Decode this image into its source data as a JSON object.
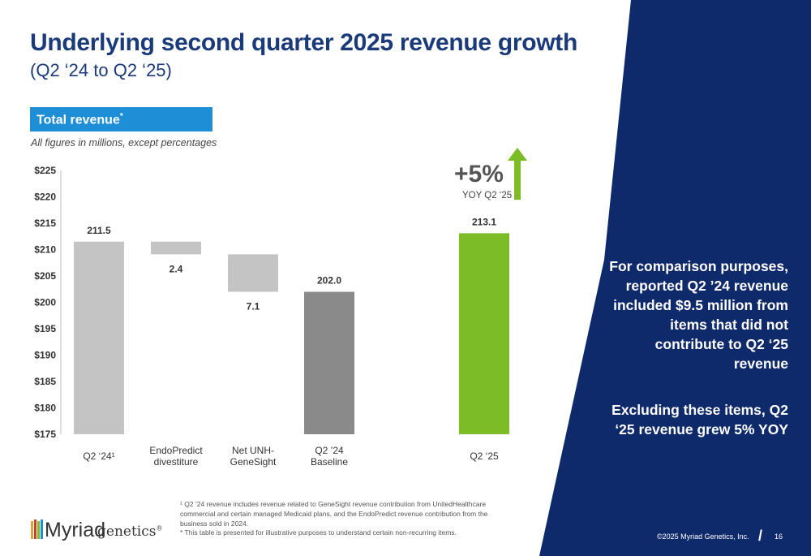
{
  "header": {
    "title": "Underlying second quarter 2025 revenue growth",
    "subtitle": "(Q2 ‘24 to Q2 ‘25)"
  },
  "section": {
    "label": "Total revenue",
    "label_sup": "*",
    "note": "All figures in millions, except percentages"
  },
  "chart_data": {
    "type": "bar",
    "subtype": "waterfall",
    "categories": [
      "Q2 ‘24¹",
      "EndoPredict divestiture",
      "Net UNH-GeneSight",
      "Q2 ’24 Baseline",
      "Q2 ‘25"
    ],
    "category_lines": [
      [
        "Q2 ‘24¹"
      ],
      [
        "EndoPredict",
        "divestiture"
      ],
      [
        "Net UNH-",
        "GeneSight"
      ],
      [
        "Q2 ’24",
        "Baseline"
      ],
      [
        "Q2 ‘25"
      ]
    ],
    "bars": [
      {
        "label": "211.5",
        "start": 175,
        "end": 211.5,
        "color": "#c4c4c4",
        "label_pos": "above"
      },
      {
        "label": "2.4",
        "start": 209.1,
        "end": 211.5,
        "color": "#c4c4c4",
        "label_pos": "below"
      },
      {
        "label": "7.1",
        "start": 202.0,
        "end": 209.1,
        "color": "#c4c4c4",
        "label_pos": "below"
      },
      {
        "label": "202.0",
        "start": 175,
        "end": 202.0,
        "color": "#8a8a8a",
        "label_pos": "above"
      },
      {
        "label": "213.1",
        "start": 175,
        "end": 213.1,
        "color": "#7cbd27",
        "label_pos": "above"
      }
    ],
    "yticks": [
      "$225",
      "$220",
      "$215",
      "$210",
      "$205",
      "$200",
      "$195",
      "$190",
      "$185",
      "$180",
      "$175"
    ],
    "ylim": [
      175,
      225
    ]
  },
  "callout": {
    "pct": "+5%",
    "label": "YOY Q2 ‘25",
    "arrow_color": "#7cbd27"
  },
  "panel": {
    "text1": "For comparison purposes, reported Q2 ’24 revenue included  $9.5 million from items that did not contribute to Q2 ‘25 revenue",
    "text2": "Excluding these items, Q2 ‘25 revenue grew 5% YOY",
    "bg": "#0f2a6b"
  },
  "footer": {
    "footnote1": "¹ Q2 ’24 revenue includes revenue related to GeneSight revenue contribution from UnitedHealthcare commercial and certain managed Medicaid plans, and the EndoPredict revenue contribution from the business sold in 2024.",
    "footnote2": "* This table is presented for illustrative purposes to understand certain non-recurring items.",
    "logo_word": "Myriad",
    "logo_word2": "genetics",
    "logo_mark": "®",
    "copyright": "©2025 Myriad Genetics, Inc.",
    "page": "16"
  }
}
